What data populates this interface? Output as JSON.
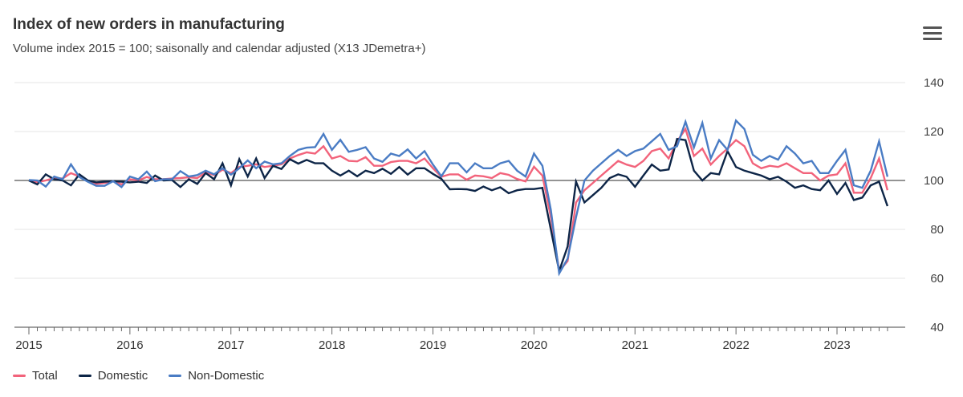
{
  "chart_data": {
    "type": "line",
    "title": "Index of new orders in manufacturing",
    "subtitle": "Volume index 2015 = 100; saisonally and calendar adjusted (X13 JDemetra+)",
    "xlabel": "",
    "ylabel": "",
    "x_start": "2015-01",
    "frequency": "monthly",
    "x_ticks": [
      "2015",
      "2016",
      "2017",
      "2018",
      "2019",
      "2020",
      "2021",
      "2022",
      "2023"
    ],
    "y_ticks": [
      40,
      60,
      80,
      100,
      120,
      140
    ],
    "ylim": [
      40,
      140
    ],
    "reference_line": 100,
    "grid": true,
    "legend_position": "bottom-left",
    "series": [
      {
        "name": "Total",
        "color": "#f2637b",
        "values": [
          100,
          99.3,
          100,
          101,
          100.8,
          103,
          101.6,
          100,
          98.6,
          99,
          99.7,
          98.4,
          100.5,
          100,
          101.4,
          100.5,
          100.5,
          100.8,
          101,
          101.3,
          101,
          103.3,
          102.2,
          104.4,
          103,
          105.5,
          106,
          106.6,
          105.5,
          106,
          106.6,
          109,
          110.4,
          111.5,
          111,
          114,
          109,
          110,
          108,
          107.8,
          109.5,
          106,
          106,
          107.5,
          108,
          108,
          107,
          109,
          105,
          101.5,
          102.5,
          102.5,
          100.3,
          102,
          101.7,
          101,
          103,
          102.3,
          100.6,
          99.6,
          105.6,
          102,
          85,
          63,
          67,
          91,
          96,
          99,
          102,
          105,
          108,
          106.5,
          105.5,
          108,
          112,
          113,
          109,
          116,
          121,
          110,
          113,
          106.5,
          110,
          113,
          116.5,
          114,
          107,
          105,
          106,
          105.5,
          107,
          105,
          103,
          103,
          100,
          102,
          102.5,
          107,
          95,
          95,
          101,
          109,
          96
        ]
      },
      {
        "name": "Domestic",
        "color": "#0d2547",
        "values": [
          100,
          98.4,
          102.5,
          100.5,
          100,
          98,
          102.5,
          100,
          99.2,
          99.5,
          99.7,
          99.5,
          99.2,
          99.5,
          99,
          102,
          100,
          100.2,
          97.3,
          100.5,
          98.6,
          103,
          100.5,
          107,
          98,
          108.7,
          101.6,
          109,
          101,
          106,
          104.7,
          108.7,
          106.9,
          108.4,
          107,
          107,
          104,
          102,
          104,
          101.7,
          104,
          103,
          104.8,
          102.7,
          105.5,
          102.4,
          105,
          105,
          102.7,
          100.7,
          96.4,
          96.5,
          96.4,
          95.7,
          97.5,
          96,
          97.2,
          94.8,
          96,
          96.5,
          96.5,
          97,
          80,
          63,
          73,
          99.5,
          91,
          94,
          97,
          101,
          102.5,
          101.5,
          97.4,
          102,
          106.5,
          104,
          104.5,
          117,
          116.5,
          104,
          100,
          103,
          102.5,
          112,
          105.5,
          104,
          103,
          102,
          100.5,
          101.5,
          99.5,
          97,
          98,
          96.5,
          96,
          100,
          94.5,
          99,
          92,
          93,
          98,
          99.5,
          89.5
        ]
      },
      {
        "name": "Non-Domestic",
        "color": "#4a7cc4",
        "values": [
          100.2,
          100,
          97.5,
          101.6,
          100.5,
          106.6,
          101.4,
          99.5,
          97.8,
          97.8,
          99.7,
          97.3,
          101.6,
          100.5,
          103.6,
          99.7,
          100.5,
          100.5,
          103.8,
          101.6,
          102.2,
          104,
          102.5,
          105,
          102.4,
          105,
          108.2,
          105,
          107.7,
          106.6,
          107,
          110,
          112.5,
          113.4,
          113.6,
          119,
          112.5,
          116.6,
          111.7,
          112.5,
          113.6,
          109,
          107.6,
          111,
          110,
          112.7,
          109,
          112,
          106.5,
          101.7,
          107,
          107,
          103.3,
          107,
          105,
          105,
          107,
          108,
          104,
          101.6,
          111,
          106,
          88,
          62,
          68,
          85,
          100,
          104,
          107,
          110,
          112.5,
          110,
          112,
          113,
          116,
          119,
          112.5,
          114,
          124,
          113.5,
          123.5,
          109,
          116.5,
          112.5,
          124.5,
          121,
          110.5,
          108,
          110,
          108.5,
          114,
          111,
          107,
          108,
          103,
          103,
          108,
          112.5,
          98,
          97,
          104,
          116,
          101.5
        ]
      }
    ]
  },
  "menu_icon": "hamburger-menu-icon"
}
